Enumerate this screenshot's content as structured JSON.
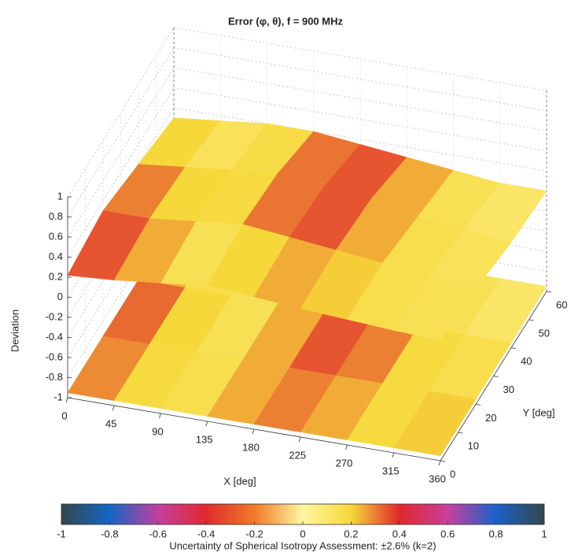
{
  "chart_data": {
    "type": "surface3d",
    "title": "Error (φ, θ), f = 900 MHz",
    "zlabel": "Deviation",
    "xlabel": "X [deg]",
    "ylabel": "Y [deg]",
    "colorbar_label": "Uncertainty of Spherical Isotropy Assessment: ±2.6% (k=2)",
    "xlim": [
      0,
      360
    ],
    "xticks": [
      0,
      45,
      90,
      135,
      180,
      225,
      270,
      315,
      360
    ],
    "ylim": [
      0,
      60
    ],
    "yticks": [
      0,
      10,
      20,
      30,
      40,
      50,
      60
    ],
    "zlim": [
      -1,
      1
    ],
    "zticks": [
      -1,
      -0.8,
      -0.6,
      -0.4,
      -0.2,
      0,
      0.2,
      0.4,
      0.6,
      0.8,
      1
    ],
    "clim": [
      -1,
      1
    ],
    "cticks": [
      -1,
      -0.8,
      -0.6,
      -0.4,
      -0.2,
      0,
      0.2,
      0.4,
      0.6,
      0.8,
      1
    ],
    "colormap_colors": [
      "#34474a",
      "#1466c4",
      "#c23f9f",
      "#e02a2e",
      "#f07a2a",
      "#fff6a0",
      "#f6d83a",
      "#e0282c",
      "#c8409c",
      "#1a62c8",
      "#34474a"
    ],
    "grid_y": [
      0,
      20,
      40,
      60
    ],
    "surfaces": [
      {
        "z": [
          [
            -0.95,
            -0.95,
            -0.95,
            -0.95,
            -0.95,
            -0.95,
            -0.95,
            -0.95,
            -0.95
          ],
          [
            -0.95,
            -0.95,
            -0.95,
            -0.95,
            -0.95,
            -0.95,
            -0.95,
            -0.95,
            -0.95
          ],
          [
            -0.95,
            -0.95,
            -0.95,
            -0.95,
            -0.95,
            -0.95,
            -0.95,
            -0.95,
            -0.95
          ],
          [
            -0.95,
            -0.95,
            -0.95,
            -0.95,
            -0.95,
            -0.95,
            -0.95,
            -0.95,
            -0.95
          ]
        ],
        "c": [
          [
            0.2,
            0.2,
            0.1,
            0.25,
            0.3,
            0.3,
            0.15,
            0.2,
            0.25
          ],
          [
            0.4,
            0.35,
            0.1,
            0.2,
            0.25,
            0.35,
            0.2,
            0.2,
            0.2
          ],
          [
            0.3,
            0.25,
            0.1,
            0.2,
            0.35,
            0.45,
            0.2,
            0.15,
            0.1
          ],
          [
            0.2,
            0.2,
            0.1,
            0.15,
            0.25,
            0.2,
            0.15,
            0.1,
            0.1
          ]
        ]
      },
      {
        "z": [
          [
            0.22,
            0.25,
            0.3,
            0.35,
            0.32,
            0.28,
            0.25,
            0.22,
            0.2
          ],
          [
            0.3,
            0.3,
            0.35,
            0.4,
            0.35,
            0.3,
            0.25,
            0.2,
            0.15
          ],
          [
            0.2,
            0.25,
            0.3,
            0.35,
            0.3,
            0.25,
            0.15,
            0.1,
            0.05
          ],
          [
            0.1,
            0.15,
            0.2,
            0.2,
            0.15,
            0.1,
            0.05,
            0.0,
            0.0
          ]
        ],
        "c": [
          [
            0.3,
            0.35,
            0.15,
            0.1,
            0.2,
            0.25,
            0.2,
            0.15,
            0.15
          ],
          [
            0.4,
            0.35,
            0.15,
            0.2,
            0.3,
            0.25,
            0.15,
            0.15,
            0.15
          ],
          [
            0.25,
            0.2,
            0.1,
            0.3,
            0.45,
            0.4,
            0.2,
            0.15,
            0.1
          ],
          [
            0.2,
            0.15,
            0.1,
            0.2,
            0.3,
            0.25,
            0.15,
            0.1,
            0.1
          ]
        ]
      }
    ]
  }
}
